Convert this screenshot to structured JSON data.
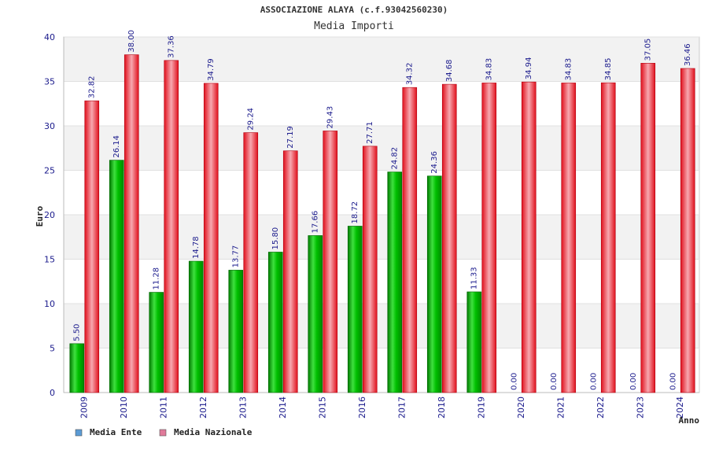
{
  "chart_data": {
    "type": "bar",
    "title": "ASSOCIAZIONE ALAYA (c.f.93042560230)",
    "subtitle": "Media Importi",
    "xlabel": "Anno",
    "ylabel": "Euro",
    "ylim": [
      0,
      40
    ],
    "yticks": [
      0,
      5,
      10,
      15,
      20,
      25,
      30,
      35,
      40
    ],
    "categories": [
      "2009",
      "2010",
      "2011",
      "2012",
      "2013",
      "2014",
      "2015",
      "2016",
      "2017",
      "2018",
      "2019",
      "2020",
      "2021",
      "2022",
      "2023",
      "2024"
    ],
    "series": [
      {
        "name": "Media Ente",
        "color": "#00c000",
        "values": [
          5.5,
          26.14,
          11.28,
          14.78,
          13.77,
          15.8,
          17.66,
          18.72,
          24.82,
          24.36,
          11.33,
          0.0,
          0.0,
          0.0,
          0.0,
          0.0
        ]
      },
      {
        "name": "Media Nazionale",
        "color": "#ee1c25",
        "values": [
          32.82,
          38.0,
          37.36,
          34.79,
          29.24,
          27.19,
          29.43,
          27.71,
          34.32,
          34.68,
          34.83,
          34.94,
          34.83,
          34.85,
          37.05,
          36.46
        ]
      }
    ],
    "legend": [
      {
        "label": "Media Ente",
        "color": "#5b9bd5"
      },
      {
        "label": "Media Nazionale",
        "color": "#e07a9a"
      }
    ],
    "legend_position": "bottom-left",
    "grid": true
  }
}
